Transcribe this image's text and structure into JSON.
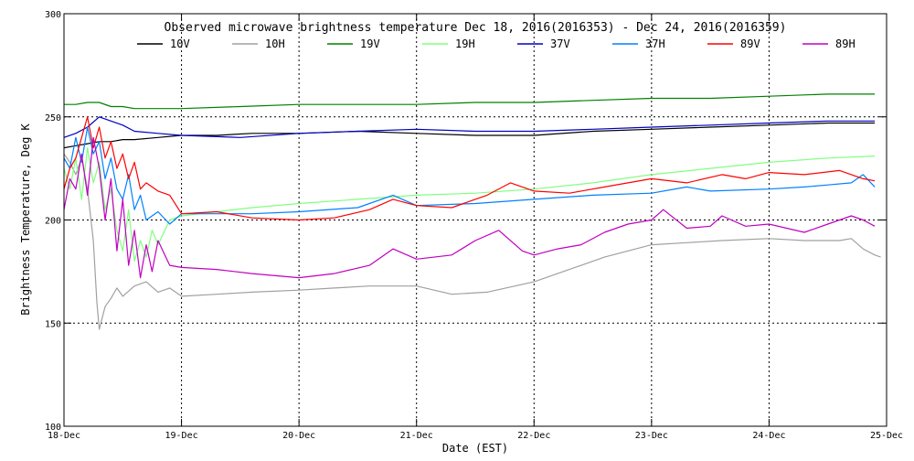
{
  "chart_data": {
    "type": "line",
    "title": "Observed microwave brightness temperature Dec 18, 2016(2016353) - Dec 24, 2016(2016359)",
    "xlabel": "Date (EST)",
    "ylabel": "Brightness Temperature, Deg K",
    "xlim": [
      18,
      25
    ],
    "ylim": [
      100,
      300
    ],
    "x_ticks": [
      {
        "value": 18,
        "label": "18-Dec"
      },
      {
        "value": 19,
        "label": "19-Dec"
      },
      {
        "value": 20,
        "label": "20-Dec"
      },
      {
        "value": 21,
        "label": "21-Dec"
      },
      {
        "value": 22,
        "label": "22-Dec"
      },
      {
        "value": 23,
        "label": "23-Dec"
      },
      {
        "value": 24,
        "label": "24-Dec"
      },
      {
        "value": 25,
        "label": "25-Dec"
      }
    ],
    "y_ticks": [
      {
        "value": 100,
        "label": "100"
      },
      {
        "value": 150,
        "label": "150"
      },
      {
        "value": 200,
        "label": "200"
      },
      {
        "value": 250,
        "label": "250"
      },
      {
        "value": 300,
        "label": "300"
      }
    ],
    "grid": "dotted vertical at day boundaries, dotted horizontal at 150, 200, 250",
    "legend_placement": "top",
    "series": [
      {
        "name": "10V",
        "color": "#000000",
        "x": [
          18.0,
          18.1,
          18.2,
          18.3,
          18.4,
          18.5,
          18.6,
          18.8,
          19.0,
          19.3,
          19.6,
          20.0,
          20.5,
          21.0,
          21.5,
          22.0,
          22.5,
          23.0,
          23.5,
          24.0,
          24.5,
          24.9
        ],
        "y": [
          235,
          236,
          237,
          238,
          238,
          239,
          239,
          240,
          241,
          241,
          242,
          242,
          243,
          242,
          241,
          241,
          243,
          244,
          245,
          246,
          247,
          247
        ]
      },
      {
        "name": "10H",
        "color": "#a0a0a0",
        "x": [
          18.0,
          18.05,
          18.1,
          18.15,
          18.2,
          18.25,
          18.28,
          18.3,
          18.35,
          18.4,
          18.45,
          18.5,
          18.6,
          18.7,
          18.8,
          18.9,
          19.0,
          19.3,
          19.6,
          20.0,
          20.3,
          20.6,
          21.0,
          21.3,
          21.6,
          22.0,
          22.3,
          22.6,
          23.0,
          23.3,
          23.6,
          24.0,
          24.3,
          24.6,
          24.7,
          24.8,
          24.9,
          24.95
        ],
        "y": [
          232,
          228,
          222,
          230,
          215,
          190,
          160,
          147,
          158,
          162,
          167,
          163,
          168,
          170,
          165,
          167,
          163,
          164,
          165,
          166,
          167,
          168,
          168,
          164,
          165,
          170,
          176,
          182,
          188,
          189,
          190,
          191,
          190,
          190,
          191,
          186,
          183,
          182
        ]
      },
      {
        "name": "19V",
        "color": "#008000",
        "x": [
          18.0,
          18.1,
          18.2,
          18.3,
          18.4,
          18.5,
          18.6,
          18.8,
          19.0,
          19.5,
          20.0,
          20.5,
          21.0,
          21.5,
          22.0,
          22.5,
          23.0,
          23.5,
          24.0,
          24.5,
          24.9
        ],
        "y": [
          256,
          256,
          257,
          257,
          255,
          255,
          254,
          254,
          254,
          255,
          256,
          256,
          256,
          257,
          257,
          258,
          259,
          259,
          260,
          261,
          261
        ]
      },
      {
        "name": "19H",
        "color": "#80ff80",
        "x": [
          18.0,
          18.05,
          18.1,
          18.15,
          18.2,
          18.25,
          18.3,
          18.35,
          18.4,
          18.45,
          18.5,
          18.55,
          18.6,
          18.65,
          18.7,
          18.75,
          18.8,
          18.9,
          19.0,
          19.3,
          19.6,
          20.0,
          20.5,
          21.0,
          21.5,
          22.0,
          22.5,
          23.0,
          23.5,
          24.0,
          24.5,
          24.9
        ],
        "y": [
          225,
          215,
          230,
          210,
          235,
          218,
          228,
          205,
          215,
          195,
          185,
          205,
          180,
          190,
          182,
          195,
          188,
          200,
          202,
          204,
          206,
          208,
          210,
          212,
          213,
          215,
          218,
          222,
          225,
          228,
          230,
          231
        ]
      },
      {
        "name": "37V",
        "color": "#0000c0",
        "x": [
          18.0,
          18.1,
          18.2,
          18.3,
          18.4,
          18.5,
          18.6,
          18.8,
          19.0,
          19.5,
          20.0,
          20.5,
          21.0,
          21.5,
          22.0,
          22.5,
          23.0,
          23.5,
          24.0,
          24.5,
          24.9
        ],
        "y": [
          240,
          242,
          245,
          250,
          248,
          246,
          243,
          242,
          241,
          240,
          242,
          243,
          244,
          243,
          243,
          244,
          245,
          246,
          247,
          248,
          248
        ]
      },
      {
        "name": "37H",
        "color": "#0080ff",
        "x": [
          18.0,
          18.05,
          18.1,
          18.15,
          18.2,
          18.25,
          18.3,
          18.35,
          18.4,
          18.45,
          18.5,
          18.55,
          18.6,
          18.65,
          18.7,
          18.8,
          18.9,
          19.0,
          19.3,
          19.6,
          20.0,
          20.5,
          20.8,
          21.0,
          21.5,
          22.0,
          22.5,
          23.0,
          23.3,
          23.5,
          24.0,
          24.3,
          24.5,
          24.7,
          24.8,
          24.9
        ],
        "y": [
          230,
          225,
          240,
          228,
          245,
          232,
          238,
          220,
          230,
          215,
          210,
          222,
          205,
          212,
          200,
          204,
          198,
          203,
          203,
          203,
          204,
          206,
          212,
          207,
          208,
          210,
          212,
          213,
          216,
          214,
          215,
          216,
          217,
          218,
          222,
          216
        ]
      },
      {
        "name": "89V",
        "color": "#ff0000",
        "x": [
          18.0,
          18.05,
          18.1,
          18.15,
          18.2,
          18.25,
          18.3,
          18.35,
          18.4,
          18.45,
          18.5,
          18.55,
          18.6,
          18.65,
          18.7,
          18.8,
          18.9,
          19.0,
          19.3,
          19.6,
          20.0,
          20.3,
          20.6,
          20.8,
          21.0,
          21.3,
          21.6,
          21.8,
          22.0,
          22.3,
          22.6,
          23.0,
          23.3,
          23.6,
          23.8,
          24.0,
          24.3,
          24.6,
          24.8,
          24.9
        ],
        "y": [
          215,
          225,
          230,
          240,
          250,
          235,
          245,
          230,
          238,
          225,
          232,
          220,
          228,
          215,
          218,
          214,
          212,
          203,
          204,
          201,
          200,
          201,
          205,
          210,
          207,
          206,
          212,
          218,
          214,
          213,
          216,
          220,
          218,
          222,
          220,
          223,
          222,
          224,
          220,
          219
        ]
      },
      {
        "name": "89H",
        "color": "#c000c0",
        "x": [
          18.0,
          18.05,
          18.1,
          18.15,
          18.2,
          18.25,
          18.3,
          18.35,
          18.4,
          18.45,
          18.5,
          18.55,
          18.6,
          18.65,
          18.7,
          18.75,
          18.8,
          18.9,
          19.0,
          19.3,
          19.6,
          20.0,
          20.3,
          20.6,
          20.8,
          21.0,
          21.3,
          21.5,
          21.7,
          21.9,
          22.0,
          22.2,
          22.4,
          22.6,
          22.8,
          23.0,
          23.1,
          23.3,
          23.5,
          23.6,
          23.8,
          24.0,
          24.3,
          24.5,
          24.7,
          24.8,
          24.9
        ],
        "y": [
          205,
          220,
          215,
          232,
          212,
          240,
          225,
          200,
          220,
          185,
          210,
          178,
          195,
          172,
          188,
          175,
          190,
          178,
          177,
          176,
          174,
          172,
          174,
          178,
          186,
          181,
          183,
          190,
          195,
          185,
          183,
          186,
          188,
          194,
          198,
          200,
          205,
          196,
          197,
          202,
          197,
          198,
          194,
          198,
          202,
          200,
          197
        ]
      }
    ]
  }
}
